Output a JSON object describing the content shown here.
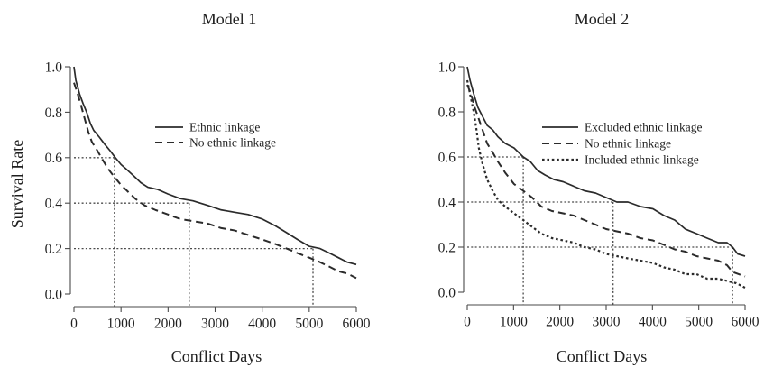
{
  "chart_data": [
    {
      "type": "line",
      "title": "Model 1",
      "xlabel": "Conflict Days",
      "ylabel": "Survival Rate",
      "xlim": [
        0,
        6000
      ],
      "ylim": [
        0,
        1
      ],
      "x_ticks": [
        0,
        1000,
        2000,
        3000,
        4000,
        5000,
        6000
      ],
      "x_tick_labels": [
        "0",
        "1000",
        "2000",
        "3000",
        "4000",
        "5000",
        "6000"
      ],
      "y_ticks": [
        0,
        0.2,
        0.4,
        0.6,
        0.8,
        1.0
      ],
      "y_tick_labels": [
        "0.0",
        "0.2",
        "0.4",
        "0.6",
        "0.8",
        "1.0"
      ],
      "grid": false,
      "legend_position": "upper-center",
      "series": [
        {
          "name": "Ethnic linkage",
          "line_style": "solid",
          "color": "#2b2b2b",
          "x": [
            0,
            40,
            120,
            190,
            270,
            350,
            420,
            540,
            650,
            770,
            880,
            1000,
            1110,
            1270,
            1420,
            1570,
            1780,
            2000,
            2260,
            2530,
            2840,
            3130,
            3410,
            3700,
            4000,
            4280,
            4520,
            4750,
            5000,
            5230,
            5430,
            5620,
            5810,
            6000
          ],
          "y": [
            1.0,
            0.94,
            0.88,
            0.84,
            0.8,
            0.75,
            0.72,
            0.69,
            0.66,
            0.63,
            0.6,
            0.57,
            0.55,
            0.52,
            0.49,
            0.47,
            0.46,
            0.44,
            0.42,
            0.41,
            0.39,
            0.37,
            0.36,
            0.35,
            0.33,
            0.3,
            0.27,
            0.24,
            0.21,
            0.2,
            0.18,
            0.16,
            0.14,
            0.13
          ]
        },
        {
          "name": "No ethnic linkage",
          "line_style": "dashed",
          "color": "#2b2b2b",
          "x": [
            0,
            80,
            150,
            230,
            310,
            380,
            500,
            610,
            730,
            840,
            1000,
            1150,
            1300,
            1500,
            1730,
            2000,
            2260,
            2550,
            2840,
            3130,
            3410,
            3700,
            4000,
            4280,
            4520,
            4750,
            5000,
            5230,
            5430,
            5620,
            5810,
            6000
          ],
          "y": [
            0.93,
            0.88,
            0.83,
            0.77,
            0.71,
            0.67,
            0.63,
            0.59,
            0.55,
            0.52,
            0.48,
            0.45,
            0.42,
            0.39,
            0.37,
            0.35,
            0.33,
            0.32,
            0.31,
            0.29,
            0.28,
            0.26,
            0.24,
            0.22,
            0.2,
            0.18,
            0.16,
            0.14,
            0.12,
            0.1,
            0.09,
            0.07
          ]
        }
      ],
      "reference_lines": [
        {
          "y": 0.6,
          "x": 860
        },
        {
          "y": 0.4,
          "x": 2450
        },
        {
          "y": 0.2,
          "x": 5080
        }
      ]
    },
    {
      "type": "line",
      "title": "Model 2",
      "xlabel": "Conflict Days",
      "ylabel": "",
      "xlim": [
        0,
        6000
      ],
      "ylim": [
        0,
        1
      ],
      "x_ticks": [
        0,
        1000,
        2000,
        3000,
        4000,
        5000,
        6000
      ],
      "x_tick_labels": [
        "0",
        "1000",
        "2000",
        "3000",
        "4000",
        "5000",
        "6000"
      ],
      "y_ticks": [
        0,
        0.2,
        0.4,
        0.6,
        0.8,
        1.0
      ],
      "y_tick_labels": [
        "0.0",
        "0.2",
        "0.4",
        "0.6",
        "0.8",
        "1.0"
      ],
      "grid": false,
      "legend_position": "upper-center",
      "series": [
        {
          "name": "Excluded ethnic linkage",
          "line_style": "solid",
          "color": "#2b2b2b",
          "x": [
            0,
            60,
            140,
            230,
            330,
            430,
            550,
            660,
            820,
            1010,
            1210,
            1360,
            1520,
            1680,
            1870,
            2070,
            2300,
            2530,
            2770,
            3000,
            3230,
            3470,
            3740,
            4010,
            4250,
            4480,
            4710,
            4950,
            5180,
            5420,
            5610,
            5730,
            5840,
            6000
          ],
          "y": [
            1.0,
            0.94,
            0.88,
            0.82,
            0.78,
            0.74,
            0.72,
            0.69,
            0.66,
            0.64,
            0.6,
            0.58,
            0.54,
            0.52,
            0.5,
            0.49,
            0.47,
            0.45,
            0.44,
            0.42,
            0.4,
            0.4,
            0.38,
            0.37,
            0.34,
            0.32,
            0.28,
            0.26,
            0.24,
            0.22,
            0.22,
            0.2,
            0.17,
            0.16
          ]
        },
        {
          "name": "No ethnic linkage",
          "line_style": "dashed",
          "color": "#2b2b2b",
          "x": [
            0,
            80,
            160,
            230,
            330,
            430,
            550,
            660,
            820,
            1010,
            1210,
            1400,
            1600,
            1830,
            2070,
            2300,
            2530,
            2770,
            3000,
            3230,
            3470,
            3740,
            4010,
            4250,
            4480,
            4710,
            4950,
            5180,
            5420,
            5610,
            5730,
            6000
          ],
          "y": [
            0.92,
            0.88,
            0.82,
            0.78,
            0.72,
            0.66,
            0.62,
            0.58,
            0.53,
            0.48,
            0.45,
            0.42,
            0.38,
            0.36,
            0.35,
            0.34,
            0.32,
            0.3,
            0.28,
            0.27,
            0.26,
            0.24,
            0.23,
            0.21,
            0.19,
            0.18,
            0.16,
            0.15,
            0.14,
            0.12,
            0.09,
            0.07
          ]
        },
        {
          "name": "Included ethnic linkage",
          "line_style": "dotted",
          "color": "#2b2b2b",
          "x": [
            0,
            80,
            140,
            200,
            250,
            330,
            430,
            550,
            660,
            820,
            1010,
            1210,
            1400,
            1600,
            1830,
            2070,
            2300,
            2530,
            2770,
            3000,
            3230,
            3470,
            3740,
            4010,
            4250,
            4480,
            4710,
            4950,
            5180,
            5420,
            5610,
            5810,
            6000
          ],
          "y": [
            0.94,
            0.86,
            0.8,
            0.72,
            0.64,
            0.57,
            0.5,
            0.45,
            0.41,
            0.38,
            0.35,
            0.32,
            0.29,
            0.26,
            0.24,
            0.23,
            0.22,
            0.2,
            0.19,
            0.17,
            0.16,
            0.15,
            0.14,
            0.13,
            0.11,
            0.1,
            0.08,
            0.08,
            0.06,
            0.06,
            0.05,
            0.04,
            0.02
          ]
        }
      ],
      "reference_lines": [
        {
          "y": 0.6,
          "x": 1210
        },
        {
          "y": 0.4,
          "x": 3150
        },
        {
          "y": 0.2,
          "x": 5730
        }
      ]
    }
  ]
}
